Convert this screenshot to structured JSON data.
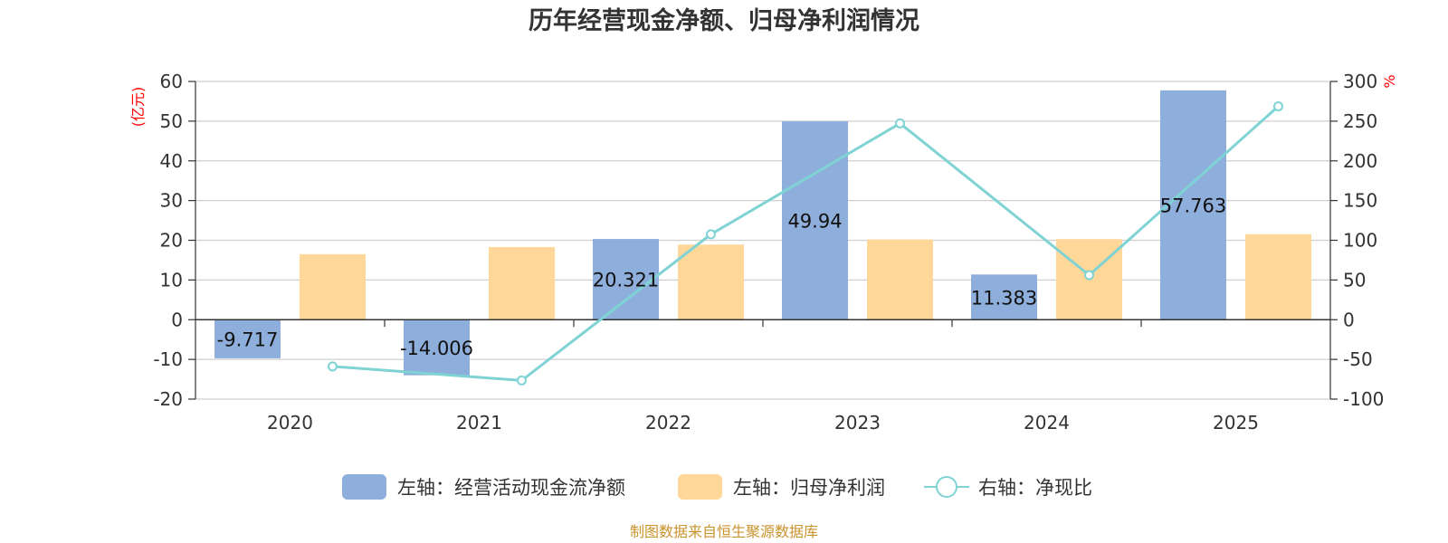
{
  "chart_data": {
    "type": "bar",
    "title": "历年经营现金净额、归母净利润情况",
    "categories": [
      "2020",
      "2021",
      "2022",
      "2023",
      "2024",
      "2025"
    ],
    "series": [
      {
        "name": "左轴：经营活动现金流净额",
        "axis": "left",
        "kind": "bar",
        "color": "#8eaedb",
        "values": [
          -9.717,
          -14.006,
          20.321,
          49.94,
          11.383,
          57.763
        ],
        "labels": [
          "-9.717",
          "-14.006",
          "20.321",
          "49.94",
          "11.383",
          "57.763"
        ]
      },
      {
        "name": "左轴：归母净利润",
        "axis": "left",
        "kind": "bar",
        "color": "#ffd899",
        "values": [
          16.5,
          18.3,
          18.9,
          20.2,
          20.3,
          21.5
        ]
      },
      {
        "name": "右轴：净现比",
        "axis": "right",
        "kind": "line",
        "color": "#7fd3d4",
        "values": [
          -58.9,
          -76.5,
          107.5,
          247.2,
          56.1,
          268.7
        ]
      }
    ],
    "left_axis": {
      "unit": "(亿元)",
      "ylim": [
        -20,
        60
      ],
      "ticks": [
        "60",
        "50",
        "40",
        "30",
        "20",
        "10",
        "0",
        "-10",
        "-20"
      ]
    },
    "right_axis": {
      "unit": "%",
      "ylim": [
        -100,
        300
      ],
      "ticks": [
        "300",
        "250",
        "200",
        "150",
        "100",
        "50",
        "0",
        "-50",
        "-100"
      ]
    },
    "grid": true,
    "legend_position": "bottom"
  },
  "source_text": "制图数据来自恒生聚源数据库"
}
